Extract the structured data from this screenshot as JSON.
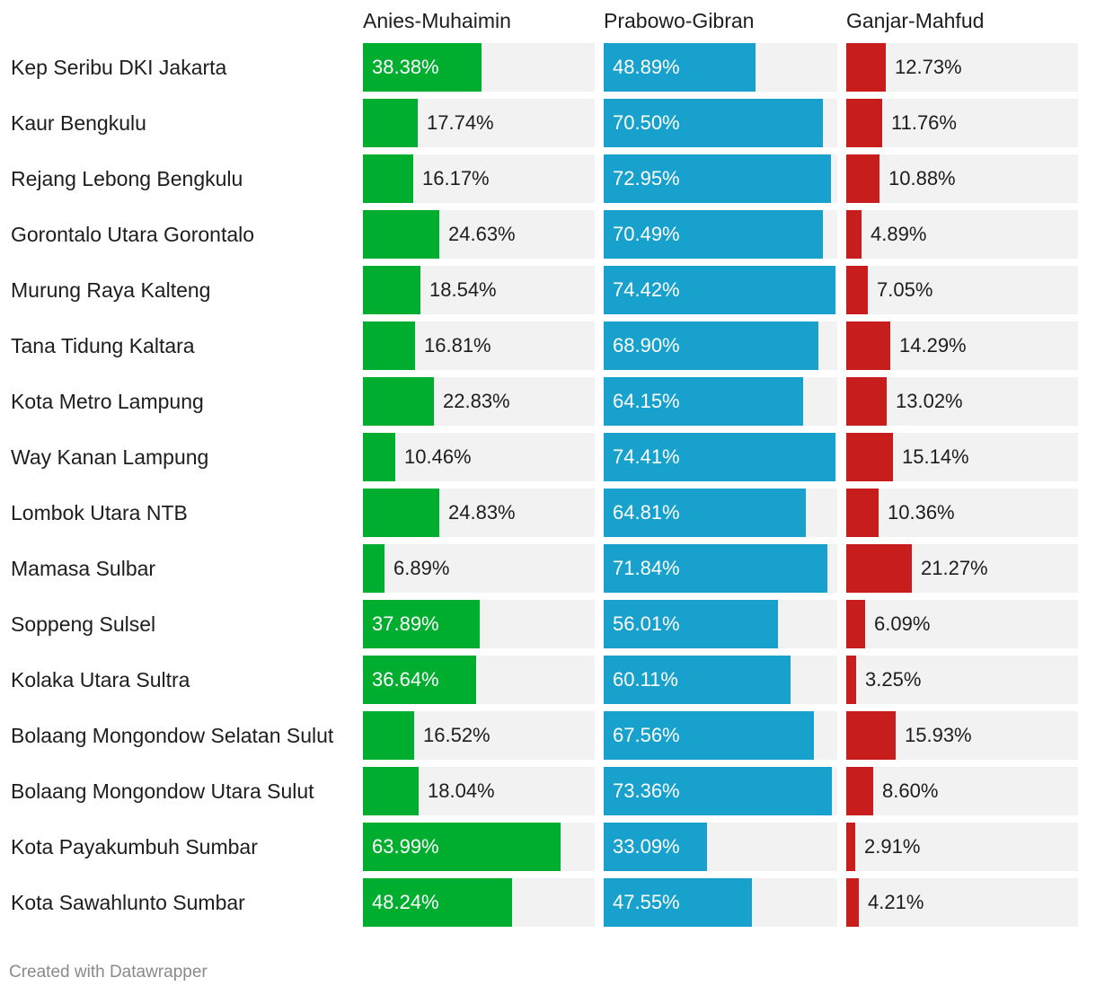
{
  "chart_data": {
    "type": "bar",
    "series": [
      {
        "name": "Anies-Muhaimin",
        "color": "#00ae2f",
        "values": [
          38.38,
          17.74,
          16.17,
          24.63,
          18.54,
          16.81,
          22.83,
          10.46,
          24.83,
          6.89,
          37.89,
          36.64,
          16.52,
          18.04,
          63.99,
          48.24
        ],
        "labels": [
          "38.38%",
          "17.74%",
          "16.17%",
          "24.63%",
          "18.54%",
          "16.81%",
          "22.83%",
          "10.46%",
          "24.83%",
          "6.89%",
          "37.89%",
          "36.64%",
          "16.52%",
          "18.04%",
          "63.99%",
          "48.24%"
        ]
      },
      {
        "name": "Prabowo-Gibran",
        "color": "#18a1cd",
        "values": [
          48.89,
          70.5,
          72.95,
          70.49,
          74.42,
          68.9,
          64.15,
          74.41,
          64.81,
          71.84,
          56.01,
          60.11,
          67.56,
          73.36,
          33.09,
          47.55
        ],
        "labels": [
          "48.89%",
          "70.50%",
          "72.95%",
          "70.49%",
          "74.42%",
          "68.90%",
          "64.15%",
          "74.41%",
          "64.81%",
          "71.84%",
          "56.01%",
          "60.11%",
          "67.56%",
          "73.36%",
          "33.09%",
          "47.55%"
        ]
      },
      {
        "name": "Ganjar-Mahfud",
        "color": "#c71e1d",
        "values": [
          12.73,
          11.76,
          10.88,
          4.89,
          7.05,
          14.29,
          13.02,
          15.14,
          10.36,
          21.27,
          6.09,
          3.25,
          15.93,
          8.6,
          2.91,
          4.21
        ],
        "labels": [
          "12.73%",
          "11.76%",
          "10.88%",
          "4.89%",
          "7.05%",
          "14.29%",
          "13.02%",
          "15.14%",
          "10.36%",
          "21.27%",
          "6.09%",
          "3.25%",
          "15.93%",
          "8.60%",
          "2.91%",
          "4.21%"
        ]
      }
    ],
    "categories": [
      "Kep Seribu DKI Jakarta",
      "Kaur Bengkulu",
      "Rejang Lebong Bengkulu",
      "Gorontalo Utara Gorontalo",
      "Murung Raya Kalteng",
      "Tana Tidung Kaltara",
      "Kota Metro Lampung",
      "Way Kanan Lampung",
      "Lombok Utara NTB",
      "Mamasa Sulbar",
      "Soppeng Sulsel",
      "Kolaka Utara Sultra",
      "Bolaang Mongondow Selatan Sulut",
      "Bolaang Mongondow Utara Sulut",
      "Kota Payakumbuh Sumbar",
      "Kota Sawahlunto Sumbar"
    ],
    "xlim": [
      0,
      75
    ],
    "track_color": "#f2f2f2"
  },
  "footer": "Created with Datawrapper"
}
